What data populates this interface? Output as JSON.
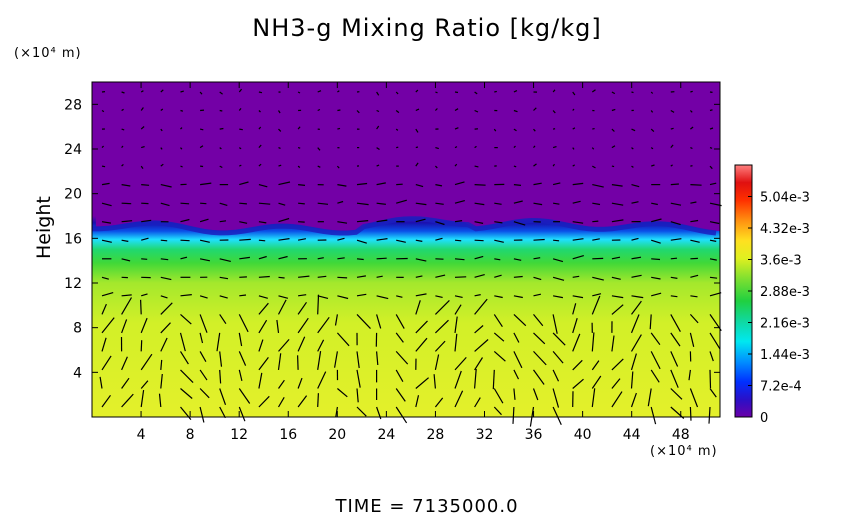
{
  "chart_data": {
    "type": "heatmap",
    "title": "NH3-g Mixing Ratio [kg/kg]",
    "ylabel": "Height",
    "x_unit": "(×10⁴ m)",
    "y_unit": "(×10⁴ m)",
    "xlim": [
      0,
      51.2
    ],
    "ylim": [
      0,
      30
    ],
    "x_ticks": [
      4,
      8,
      12,
      16,
      20,
      24,
      28,
      32,
      36,
      40,
      44,
      48
    ],
    "y_ticks": [
      4,
      8,
      12,
      16,
      20,
      24,
      28
    ],
    "colorbar": {
      "min": 0,
      "max": 0.00576,
      "tick_labels": [
        "0",
        "7.2e-4",
        "1.44e-3",
        "2.16e-3",
        "2.88e-3",
        "3.6e-3",
        "4.32e-3",
        "5.04e-3"
      ],
      "tick_values": [
        0,
        0.00072,
        0.00144,
        0.00216,
        0.00288,
        0.0036,
        0.00432,
        0.00504
      ]
    },
    "layers": [
      {
        "from_height": 0,
        "to_height": 9,
        "value": 0.0037
      },
      {
        "from_height": 9,
        "to_height": 12,
        "value": 0.0034
      },
      {
        "from_height": 12,
        "to_height": 15,
        "value": 0.0029
      },
      {
        "from_height": 15,
        "to_height": 16.5,
        "value": 0.0018
      },
      {
        "from_height": 16.5,
        "to_height": 17.5,
        "value": 0.0006
      },
      {
        "from_height": 17.5,
        "to_height": 30,
        "value": 5e-05
      }
    ],
    "wind_vectors": "overlay"
  },
  "footer": {
    "time_label": "TIME  =  7135000.0"
  },
  "colors": {
    "purple": "#7300a6",
    "blue": "#0a1ad0",
    "cyan": "#1fe0ff",
    "green": "#2ad640",
    "yellowgreen": "#c8f026",
    "lightyellow": "#e8ec2c"
  }
}
